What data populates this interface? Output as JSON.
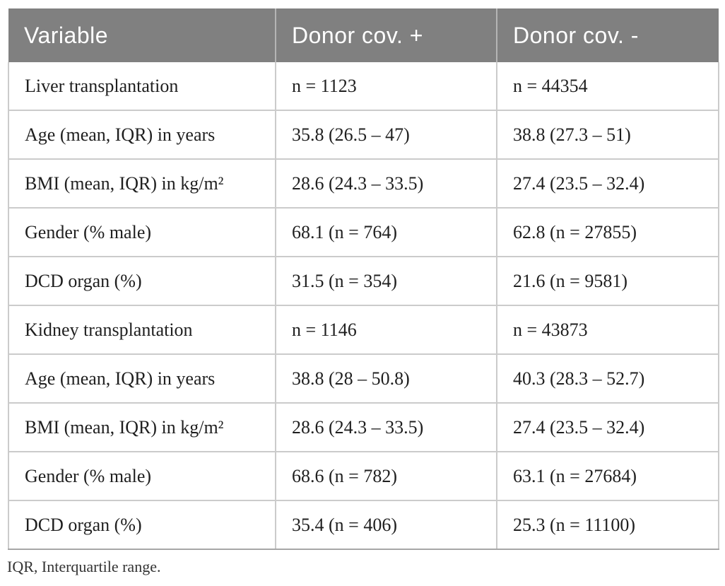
{
  "table": {
    "columns": [
      "Variable",
      "Donor cov. +",
      "Donor cov. -"
    ],
    "rows": [
      {
        "cells": [
          "Liver transplantation",
          "n = 1123",
          "n = 44354"
        ]
      },
      {
        "cells": [
          "Age (mean, IQR) in years",
          "35.8 (26.5 – 47)",
          "38.8 (27.3 – 51)"
        ]
      },
      {
        "cells": [
          "BMI (mean, IQR) in kg/m²",
          "28.6 (24.3 – 33.5)",
          "27.4 (23.5 – 32.4)"
        ]
      },
      {
        "cells": [
          "Gender (% male)",
          "68.1 (n = 764)",
          "62.8 (n = 27855)"
        ]
      },
      {
        "cells": [
          "DCD organ (%)",
          "31.5 (n = 354)",
          "21.6 (n = 9581)"
        ]
      },
      {
        "cells": [
          "Kidney transplantation",
          "n = 1146",
          "n = 43873"
        ]
      },
      {
        "cells": [
          "Age (mean, IQR) in years",
          "38.8 (28 – 50.8)",
          "40.3 (28.3 – 52.7)"
        ]
      },
      {
        "cells": [
          "BMI (mean, IQR) in kg/m²",
          "28.6 (24.3 – 33.5)",
          "27.4 (23.5 – 32.4)"
        ]
      },
      {
        "cells": [
          "Gender (% male)",
          "68.6 (n = 782)",
          "63.1 (n = 27684)"
        ]
      },
      {
        "cells": [
          "DCD organ (%)",
          "35.4 (n = 406)",
          "25.3 (n = 11100)"
        ]
      }
    ],
    "footnote": "IQR, Interquartile range."
  },
  "colors": {
    "header_bg": "#808080",
    "header_text": "#ffffff",
    "header_divider": "#b5b5b5",
    "body_text": "#1f1f1f",
    "cell_border": "#cbcbcb",
    "bottom_border": "#a6a6a6"
  }
}
